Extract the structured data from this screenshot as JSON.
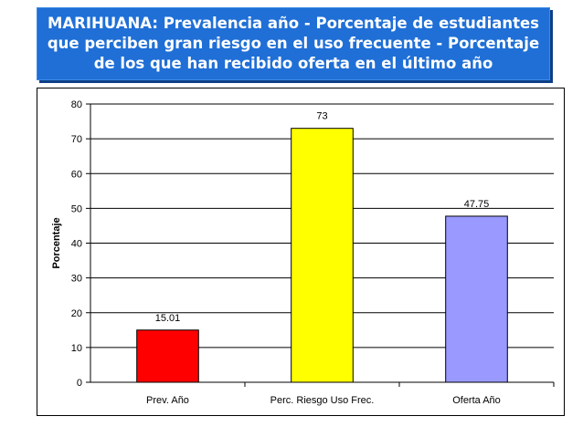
{
  "title": "MARIHUANA: Prevalencia año - Porcentaje de estudiantes que perciben gran riesgo en el uso frecuente  - Porcentaje de los que han recibido oferta en el último año",
  "colors": {
    "banner": "#1f6fd6",
    "bar_1": "#ff0000",
    "bar_2": "#ffff00",
    "bar_3": "#9999ff"
  },
  "chart_data": {
    "type": "bar",
    "categories": [
      "Prev. Año",
      "Perc. Riesgo Uso Frec.",
      "Oferta Año"
    ],
    "values": [
      15.01,
      73,
      47.75
    ],
    "value_labels": [
      "15.01",
      "73",
      "47.75"
    ],
    "bar_colors": [
      "#ff0000",
      "#ffff00",
      "#9999ff"
    ],
    "xlabel": "",
    "ylabel": "Porcentaje",
    "ylim": [
      0,
      80
    ],
    "yticks": [
      0,
      10,
      20,
      30,
      40,
      50,
      60,
      70,
      80
    ],
    "grid": true,
    "legend": false
  }
}
